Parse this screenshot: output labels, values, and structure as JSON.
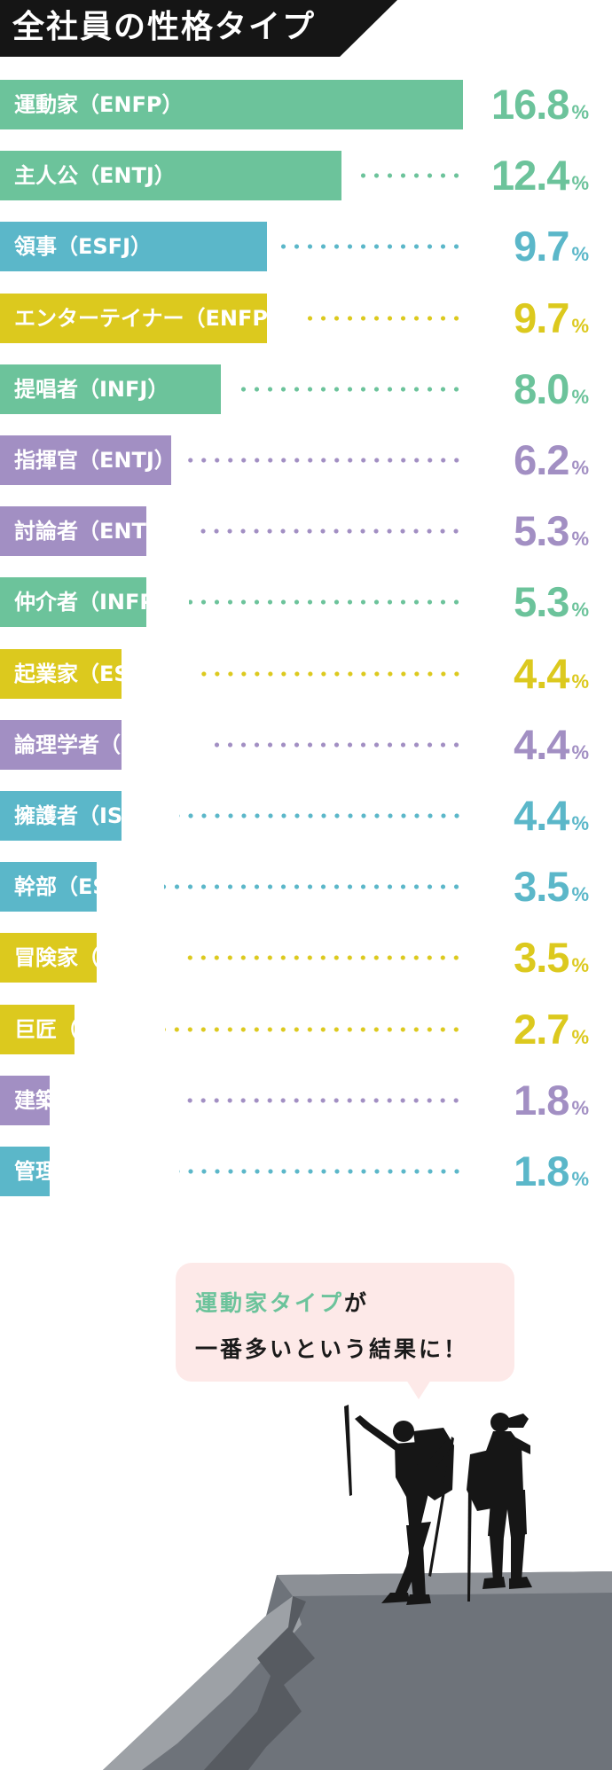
{
  "title": "全社員の性格タイプ",
  "colors": {
    "green": "#6cc39b",
    "yellow": "#dcc91e",
    "purple": "#a28fc3",
    "blue": "#5bb7c9",
    "title_bg": "#151515",
    "bubble_bg": "#fde9e8",
    "rock": "#6e737a",
    "silhouette": "#161616"
  },
  "chart_data": {
    "type": "bar",
    "orientation": "horizontal",
    "title": "全社員の性格タイプ",
    "unit": "%",
    "xlim": [
      0,
      16.8
    ],
    "categories": [
      "運動家（ENFP）",
      "主人公（ENTJ）",
      "領事（ESFJ）",
      "エンターテイナー（ENFP）",
      "提唱者（INFJ）",
      "指揮官（ENTJ）",
      "討論者（ENTP）",
      "仲介者（INFP）",
      "起業家（ESTP）",
      "論理学者（INTP）",
      "擁護者（ISTJ）",
      "幹部（ESTJ）",
      "冒険家（ISFP）",
      "巨匠（ISTP）",
      "建築家（INTJ）",
      "管理者（ISTJ）"
    ],
    "values": [
      16.8,
      12.4,
      9.7,
      9.7,
      8.0,
      6.2,
      5.3,
      5.3,
      4.4,
      4.4,
      4.4,
      3.5,
      3.5,
      2.7,
      1.8,
      1.8
    ],
    "value_labels": [
      "16.8",
      "12.4",
      "9.7",
      "9.7",
      "8.0",
      "6.2",
      "5.3",
      "5.3",
      "4.4",
      "4.4",
      "4.4",
      "3.5",
      "3.5",
      "2.7",
      "1.8",
      "1.8"
    ],
    "bar_colors": [
      "green",
      "green",
      "blue",
      "yellow",
      "green",
      "purple",
      "purple",
      "green",
      "yellow",
      "purple",
      "blue",
      "blue",
      "yellow",
      "yellow",
      "purple",
      "blue"
    ]
  },
  "bubble": {
    "highlight": "運動家タイプ",
    "line1_rest": "が",
    "line2": "一番多いという結果に！"
  }
}
